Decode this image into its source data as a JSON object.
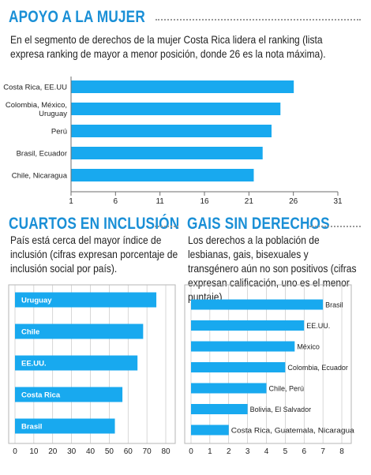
{
  "colors": {
    "bar": "#18a9ef",
    "title": "#1a8fd6",
    "frame": "#b5b5b5",
    "grid": "#bdbdbd"
  },
  "panel1": {
    "title": "APOYO A LA MUJER",
    "text": "En el segmento de derechos de la mujer Costa Rica lidera el ranking (lista expresa ranking de mayor a menor posición, donde 26 es la nota máxima)."
  },
  "panel2": {
    "title": "CUARTOS EN INCLUSIÓN",
    "text": "País está cerca del mayor índice de inclusión (cifras expresan porcentaje de inclusión social por país)."
  },
  "panel3": {
    "title": "GAIS SIN DERECHOS",
    "text": "Los derechos a la población de lesbianas, gais, bisexuales y transgénero aún no son positivos (cifras expresan calificación, uno es el menor puntaje)."
  },
  "chart_data": [
    {
      "type": "bar",
      "orientation": "horizontal",
      "categories": [
        "Costa Rica, EE.UU",
        "Colombia, México, Uruguay",
        "Perú",
        "Brasil, Ecuador",
        "Chile, Nicaragua"
      ],
      "values": [
        26,
        24.5,
        23.5,
        22.5,
        21.5
      ],
      "xlim": [
        1,
        31
      ],
      "ticks": [
        "1",
        "6",
        "11",
        "16",
        "21",
        "26",
        "31"
      ],
      "title": "",
      "xlabel": "",
      "ylabel": ""
    },
    {
      "type": "bar",
      "orientation": "horizontal",
      "categories": [
        "Uruguay",
        "Chile",
        "EE.UU.",
        "Costa Rica",
        "Brasil"
      ],
      "values": [
        75,
        68,
        65,
        57,
        53
      ],
      "xlim": [
        0,
        80
      ],
      "ticks": [
        "0",
        "10",
        "20",
        "30",
        "40",
        "50",
        "60",
        "70",
        "80"
      ],
      "title": "",
      "xlabel": "",
      "ylabel": ""
    },
    {
      "type": "bar",
      "orientation": "horizontal",
      "categories": [
        "Brasil",
        "EE.UU.",
        "México",
        "Colombia, Ecuador",
        "Chile, Perú",
        "Bolivia, El Salvador",
        "Costa Rica, Guatemala, Nicaragua"
      ],
      "values": [
        7,
        6,
        5.5,
        5,
        4,
        3,
        2
      ],
      "xlim": [
        0,
        8
      ],
      "ticks": [
        "0",
        "1",
        "2",
        "3",
        "4",
        "5",
        "6",
        "7",
        "8"
      ],
      "title": "",
      "xlabel": "",
      "ylabel": ""
    }
  ]
}
